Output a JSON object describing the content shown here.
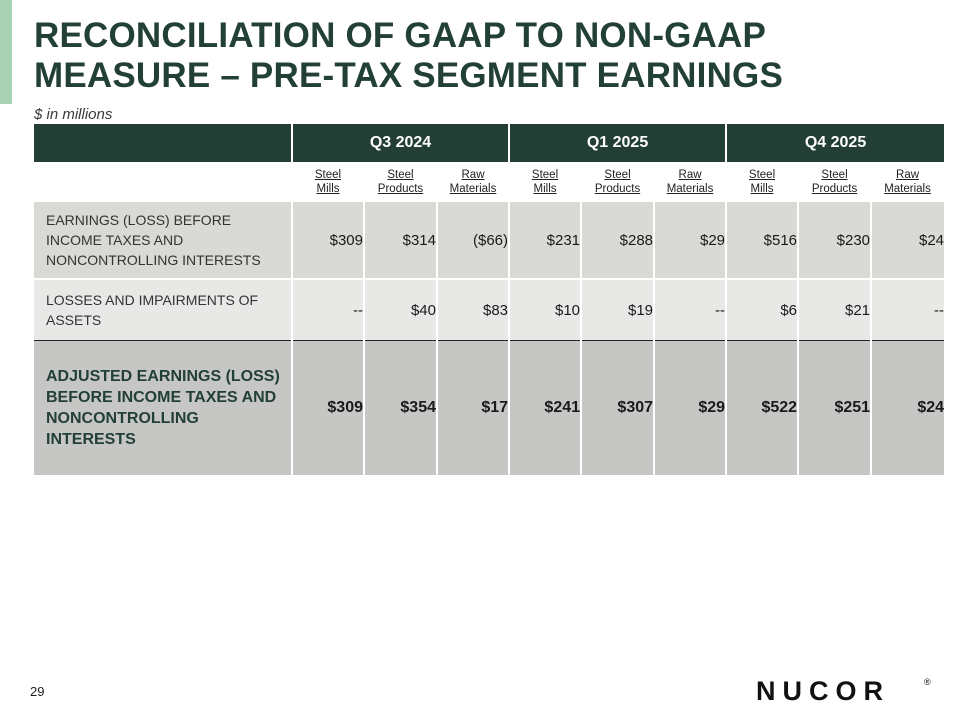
{
  "title": {
    "line1": "RECONCILIATION OF GAAP TO NON-GAAP",
    "line2": "MEASURE – PRE-TAX SEGMENT EARNINGS"
  },
  "subtitle": "$ in millions",
  "periods": [
    "Q3 2024",
    "Q1 2025",
    "Q4 2025"
  ],
  "segments": [
    {
      "line1": "Steel",
      "line2": "Mills"
    },
    {
      "line1": "Steel",
      "line2": "Products"
    },
    {
      "line1": "Raw",
      "line2": "Materials"
    }
  ],
  "rows": [
    {
      "label": "EARNINGS (LOSS) BEFORE INCOME TAXES AND NONCONTROLLING INTERESTS",
      "values": [
        "$309",
        "$314",
        "($66)",
        "$231",
        "$288",
        "$29",
        "$516",
        "$230",
        "$24"
      ]
    },
    {
      "label": "LOSSES AND IMPAIRMENTS OF ASSETS",
      "values": [
        "--",
        "$40",
        "$83",
        "$10",
        "$19",
        "--",
        "$6",
        "$21",
        "--"
      ]
    },
    {
      "label": "ADJUSTED EARNINGS (LOSS) BEFORE INCOME TAXES AND NONCONTROLLING INTERESTS",
      "values": [
        "$309",
        "$354",
        "$17",
        "$241",
        "$307",
        "$29",
        "$522",
        "$251",
        "$24"
      ]
    }
  ],
  "page_number": "29",
  "logo": {
    "text": "NUCOR",
    "mark": "®"
  },
  "colors": {
    "header_bg": "#233f35",
    "title_text": "#234036",
    "accent": "#a9d2b4",
    "row1_bg": "#d9dad6",
    "row2_bg": "#e8e8e6",
    "row3_bg": "#c6c6c4"
  }
}
